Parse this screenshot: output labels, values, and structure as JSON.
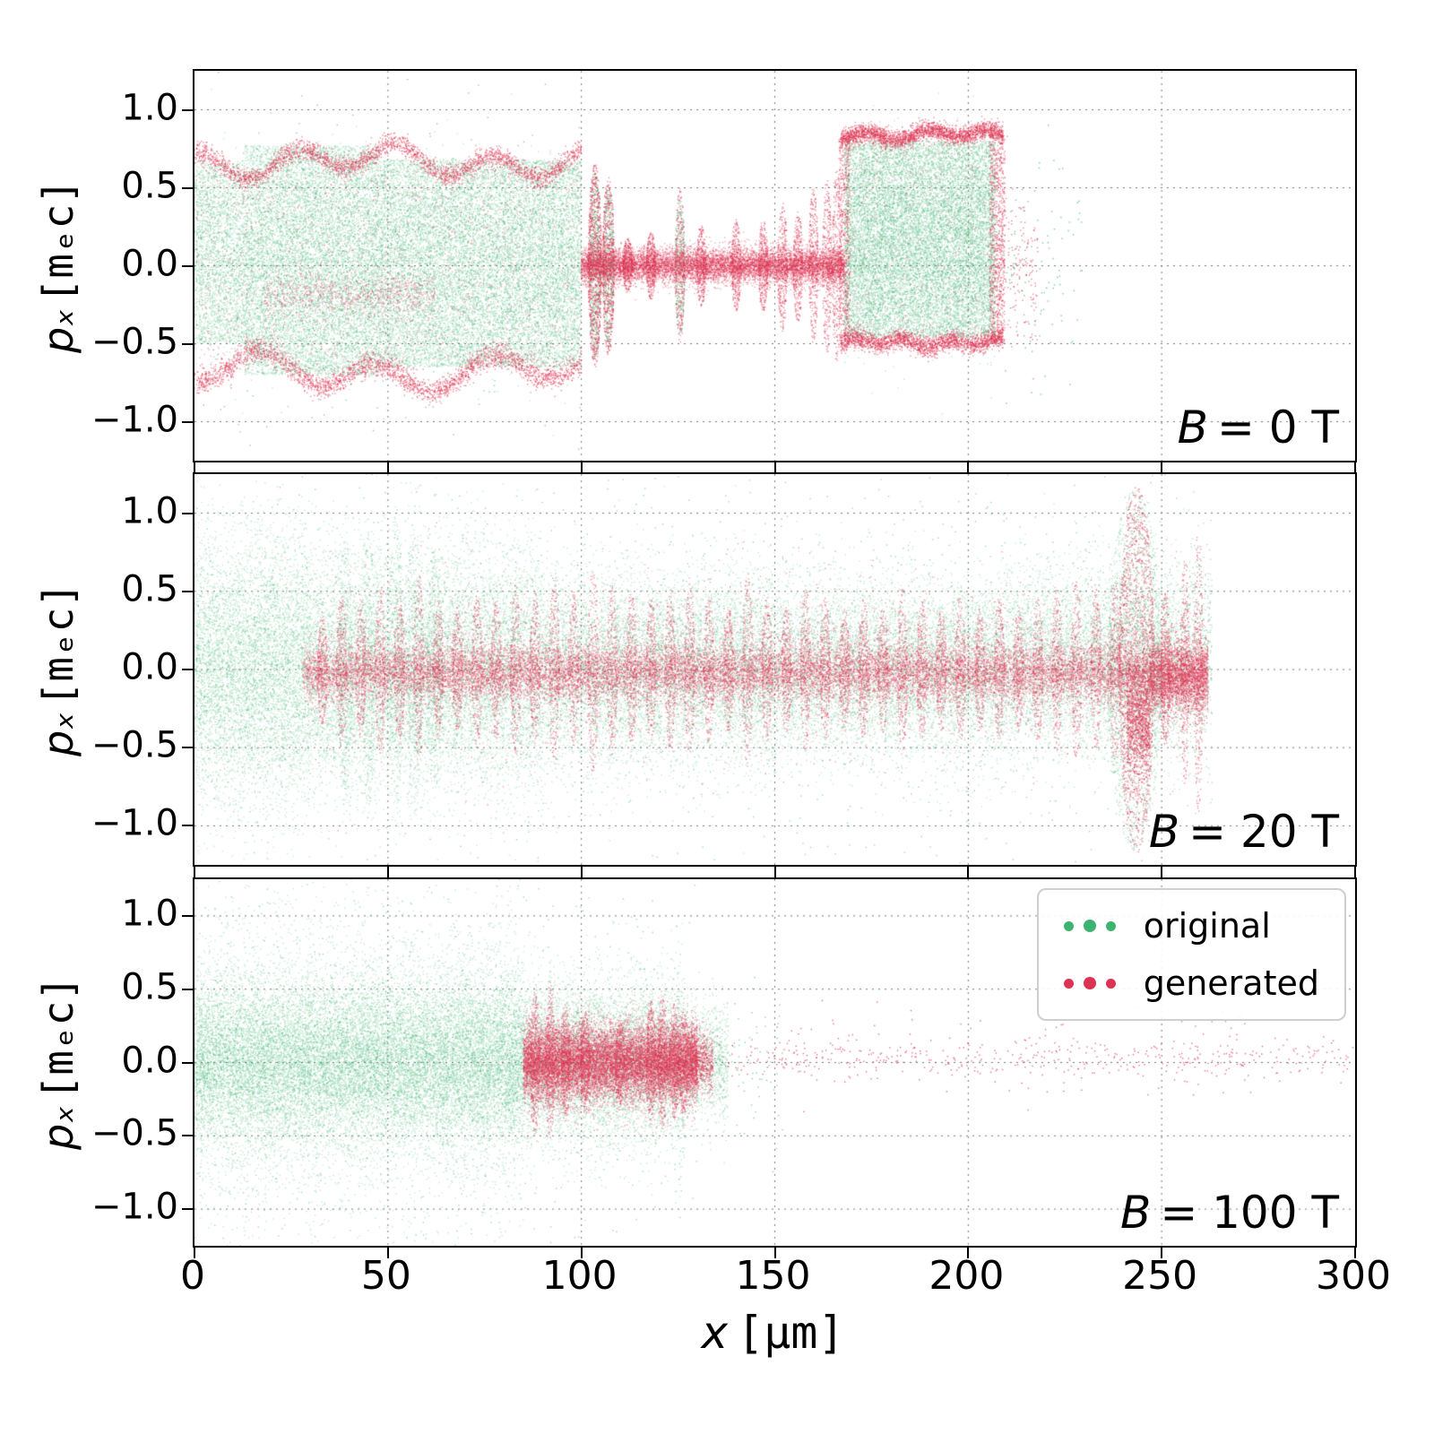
{
  "chart_data": {
    "type": "scatter",
    "title": "",
    "xlabel": {
      "symbol": "x",
      "unit": "[μm]"
    },
    "ylabel": {
      "symbol": "pₓ",
      "unit": "[mₑc]"
    },
    "xlim": [
      0,
      300
    ],
    "ylim": [
      -1.25,
      1.25
    ],
    "xticks": [
      0,
      50,
      100,
      150,
      200,
      250,
      300
    ],
    "xtick_labels": [
      "0",
      "50",
      "100",
      "150",
      "200",
      "250",
      "300"
    ],
    "yticks": [
      -1.0,
      -0.5,
      0.0,
      0.5,
      1.0
    ],
    "ytick_labels": [
      "−1.0",
      "−0.5",
      "0.0",
      "0.5",
      "1.0"
    ],
    "grid": true,
    "colors": {
      "original": "#3cb371",
      "generated": "#dc3352"
    },
    "legend": {
      "position": "upper right of bottom panel",
      "entries": [
        {
          "key": "original",
          "label": "original"
        },
        {
          "key": "generated",
          "label": "generated"
        }
      ]
    },
    "panels": [
      {
        "annotation": {
          "symbol": "B",
          "rest": "= 0 T"
        },
        "clouds": [
          {
            "t": "u",
            "s": "o",
            "x": [
              0,
              13
            ],
            "y": [
              -0.5,
              0.66
            ],
            "n": 2200,
            "a": 0.3
          },
          {
            "t": "u",
            "s": "o",
            "x": [
              13,
              48
            ],
            "y": [
              -0.7,
              0.77
            ],
            "n": 9000,
            "a": 0.3
          },
          {
            "t": "u",
            "s": "o",
            "x": [
              48,
              100
            ],
            "y": [
              -0.65,
              0.68
            ],
            "n": 12000,
            "a": 0.3
          },
          {
            "t": "g",
            "s": "o",
            "x": [
              0,
              100
            ],
            "mu": 0,
            "sg": 0.3,
            "n": 4000,
            "a": 0.3
          },
          {
            "t": "g",
            "s": "o",
            "x": [
              0,
              100
            ],
            "mu": 0,
            "sg": 0.75,
            "n": 300,
            "a": 0.6
          },
          {
            "t": "l",
            "s": "o",
            "cx": 103.5,
            "w": 3,
            "h": 0.6,
            "n": 600,
            "a": 0.45
          },
          {
            "t": "l",
            "s": "o",
            "cx": 107,
            "w": 2.6,
            "h": 0.52,
            "n": 450,
            "a": 0.45
          },
          {
            "t": "l",
            "s": "o",
            "cx": 125.5,
            "w": 2.6,
            "h": 0.45,
            "n": 300,
            "a": 0.45
          },
          {
            "t": "u",
            "s": "o",
            "x": [
              168,
              207
            ],
            "y": [
              -0.46,
              0.8
            ],
            "n": 12000,
            "a": 0.3
          },
          {
            "t": "g",
            "s": "o",
            "x": [
              168,
              207
            ],
            "mu": 0.15,
            "sg": 0.3,
            "n": 3000,
            "a": 0.3
          },
          {
            "t": "g",
            "s": "o",
            "x": [
              205,
              230
            ],
            "mu": 0,
            "sg": 0.3,
            "n": 120,
            "a": 0.7
          },
          {
            "t": "e",
            "s": "g",
            "x": [
              0,
              100
            ],
            "y0": 0.67,
            "amp": 0.08,
            "frq": 0.25,
            "sg": 0.035,
            "side": 1,
            "n": 2600,
            "a": 0.55
          },
          {
            "t": "e",
            "s": "g",
            "x": [
              0,
              100
            ],
            "y0": 0.68,
            "amp": 0.09,
            "frq": 0.21,
            "sg": 0.04,
            "side": -1,
            "n": 2600,
            "a": 0.55
          },
          {
            "t": "u",
            "s": "g",
            "x": [
              0,
              100
            ],
            "y": [
              -0.6,
              0.62
            ],
            "n": 1600,
            "a": 0.35
          },
          {
            "t": "g",
            "s": "g",
            "x": [
              18,
              62
            ],
            "mu": -0.18,
            "sg": 0.07,
            "n": 700,
            "a": 0.4
          },
          {
            "t": "l",
            "s": "g",
            "cx": 103.5,
            "w": 3.4,
            "h": 0.66,
            "n": 900,
            "a": 0.55
          },
          {
            "t": "l",
            "s": "g",
            "cx": 107,
            "w": 3,
            "h": 0.58,
            "n": 650,
            "a": 0.55
          },
          {
            "t": "g",
            "s": "g",
            "x": [
              100,
              168
            ],
            "mu": 0,
            "sg": 0.055,
            "n": 9000,
            "a": 0.4
          },
          {
            "t": "k",
            "s": "g",
            "w": 2.4,
            "n": 320,
            "a": 0.5,
            "pts": [
              [
                112,
                0.18
              ],
              [
                118,
                0.22
              ],
              [
                125.5,
                0.5
              ],
              [
                131,
                0.26
              ],
              [
                140,
                0.3
              ],
              [
                147,
                0.3
              ],
              [
                152,
                0.42
              ],
              [
                156,
                0.36
              ],
              [
                160,
                0.5
              ],
              [
                163.5,
                0.56
              ],
              [
                166,
                0.62
              ]
            ]
          },
          {
            "t": "e",
            "s": "g",
            "x": [
              167,
              209
            ],
            "y0": 0.84,
            "amp": 0.025,
            "frq": 0.4,
            "sg": 0.03,
            "side": 1,
            "n": 2400,
            "a": 0.55
          },
          {
            "t": "e",
            "s": "g",
            "x": [
              167,
              209
            ],
            "y0": 0.49,
            "amp": 0.02,
            "frq": 0.5,
            "sg": 0.03,
            "side": -1,
            "n": 2000,
            "a": 0.55
          },
          {
            "t": "u",
            "s": "g",
            "x": [
              166.5,
              169.5
            ],
            "y": [
              -0.48,
              0.82
            ],
            "n": 600,
            "a": 0.5
          },
          {
            "t": "u",
            "s": "g",
            "x": [
              205.5,
              209.5
            ],
            "y": [
              -0.5,
              0.84
            ],
            "n": 900,
            "a": 0.5
          },
          {
            "t": "u",
            "s": "g",
            "x": [
              168,
              207
            ],
            "y": [
              -0.45,
              0.8
            ],
            "n": 700,
            "a": 0.3
          },
          {
            "t": "g",
            "s": "g",
            "x": [
              209,
              218
            ],
            "mu": 0,
            "sg": 0.25,
            "n": 150,
            "a": 0.6
          }
        ]
      },
      {
        "annotation": {
          "symbol": "B",
          "rest": "= 20 T"
        },
        "clouds": [
          {
            "t": "g",
            "s": "o",
            "x": [
              0,
              30
            ],
            "mu": 0,
            "sg": 0.42,
            "n": 6500,
            "a": 0.28
          },
          {
            "t": "g",
            "s": "o",
            "x": [
              30,
              90
            ],
            "mu": 0,
            "sg": 0.38,
            "n": 10000,
            "a": 0.28
          },
          {
            "t": "g",
            "s": "o",
            "x": [
              90,
              150
            ],
            "mu": 0,
            "sg": 0.3,
            "n": 8500,
            "a": 0.28
          },
          {
            "t": "g",
            "s": "o",
            "x": [
              150,
              210
            ],
            "mu": 0,
            "sg": 0.27,
            "n": 7500,
            "a": 0.28
          },
          {
            "t": "g",
            "s": "o",
            "x": [
              210,
              256
            ],
            "mu": 0.05,
            "sg": 0.28,
            "n": 5500,
            "a": 0.28
          },
          {
            "t": "k",
            "s": "o",
            "w": 3.5,
            "n": 350,
            "a": 0.3,
            "pts": [
              [
                39,
                0.85
              ],
              [
                45,
                0.9
              ],
              [
                52,
                1.0
              ],
              [
                57,
                0.95
              ],
              [
                62,
                0.8
              ]
            ]
          },
          {
            "t": "l",
            "s": "o",
            "cx": 243,
            "w": 14,
            "h": 1.15,
            "n": 1400,
            "a": 0.35
          },
          {
            "t": "g",
            "s": "o",
            "x": [
              256,
              263
            ],
            "mu": 0.1,
            "sg": 0.35,
            "n": 500,
            "a": 0.4
          },
          {
            "t": "g",
            "s": "o",
            "x": [
              0,
              255
            ],
            "mu": 0,
            "sg": 0.75,
            "n": 1500,
            "a": 0.5
          },
          {
            "t": "g",
            "s": "g",
            "x": [
              28,
              262
            ],
            "mu": -0.02,
            "sg": 0.09,
            "n": 16000,
            "a": 0.4
          },
          {
            "t": "k",
            "s": "g",
            "w": 2.6,
            "n": 260,
            "a": 0.45,
            "pts": [
              [
                33,
                0.35
              ],
              [
                38,
                0.5
              ],
              [
                43,
                0.45
              ],
              [
                48,
                0.55
              ],
              [
                53,
                0.5
              ],
              [
                58,
                0.62
              ],
              [
                63,
                0.45
              ],
              [
                68,
                0.4
              ],
              [
                73,
                0.5
              ],
              [
                78,
                0.45
              ],
              [
                83,
                0.55
              ],
              [
                88,
                0.5
              ],
              [
                93,
                0.62
              ],
              [
                98,
                0.5
              ],
              [
                103,
                0.66
              ],
              [
                108,
                0.55
              ],
              [
                113,
                0.5
              ],
              [
                118,
                0.46
              ],
              [
                123,
                0.52
              ],
              [
                128,
                0.56
              ],
              [
                133,
                0.46
              ],
              [
                138,
                0.4
              ],
              [
                143,
                0.62
              ],
              [
                148,
                0.46
              ],
              [
                153,
                0.4
              ],
              [
                158,
                0.52
              ],
              [
                163,
                0.46
              ],
              [
                168,
                0.4
              ],
              [
                173,
                0.46
              ],
              [
                178,
                0.4
              ],
              [
                183,
                0.52
              ],
              [
                188,
                0.46
              ],
              [
                193,
                0.4
              ],
              [
                198,
                0.46
              ],
              [
                203,
                0.4
              ],
              [
                208,
                0.46
              ],
              [
                213,
                0.4
              ],
              [
                218,
                0.46
              ],
              [
                223,
                0.52
              ],
              [
                228,
                0.58
              ],
              [
                233,
                0.52
              ],
              [
                238,
                0.58
              ]
            ]
          },
          {
            "t": "l",
            "s": "g",
            "cx": 243.5,
            "w": 9,
            "h": 1.18,
            "n": 1600,
            "a": 0.5
          },
          {
            "t": "g",
            "s": "g",
            "x": [
              241,
              247
            ],
            "mu": -0.3,
            "sg": 0.18,
            "n": 1200,
            "a": 0.5
          },
          {
            "t": "g",
            "s": "g",
            "x": [
              247,
              262
            ],
            "mu": -0.05,
            "sg": 0.12,
            "n": 2200,
            "a": 0.45
          },
          {
            "t": "k",
            "s": "g",
            "w": 2.2,
            "n": 280,
            "a": 0.5,
            "pts": [
              [
                251,
                0.5
              ],
              [
                256,
                0.75
              ],
              [
                259.5,
                0.92
              ]
            ]
          },
          {
            "t": "g",
            "s": "g",
            "x": [
              30,
              260
            ],
            "mu": 0,
            "sg": 0.32,
            "n": 1500,
            "a": 0.45
          }
        ]
      },
      {
        "annotation": {
          "symbol": "B",
          "rest": "= 100 T"
        },
        "clouds": [
          {
            "t": "g",
            "s": "o",
            "x": [
              0,
              85
            ],
            "mu": 0,
            "sg": 0.27,
            "n": 17000,
            "a": 0.28
          },
          {
            "t": "g",
            "s": "o",
            "x": [
              0,
              85
            ],
            "mu": 0,
            "sg": 0.55,
            "n": 4500,
            "a": 0.3
          },
          {
            "t": "g",
            "s": "o",
            "x": [
              85,
              127
            ],
            "mu": 0,
            "sg": 0.28,
            "n": 7000,
            "a": 0.28
          },
          {
            "t": "g",
            "s": "o",
            "x": [
              127,
              138
            ],
            "mu": 0,
            "sg": 0.2,
            "n": 1000,
            "a": 0.3
          },
          {
            "t": "g",
            "s": "o",
            "x": [
              0,
              130
            ],
            "mu": 0,
            "sg": 0.9,
            "n": 700,
            "a": 0.5
          },
          {
            "t": "g",
            "s": "o",
            "x": [
              138,
              152
            ],
            "mu": 0,
            "sg": 0.25,
            "n": 60,
            "a": 0.6
          },
          {
            "t": "g",
            "s": "g",
            "x": [
              85,
              130
            ],
            "mu": 0,
            "sg": 0.13,
            "n": 14000,
            "a": 0.4
          },
          {
            "t": "k",
            "s": "g",
            "w": 2.4,
            "n": 320,
            "a": 0.45,
            "pts": [
              [
                88,
                0.5
              ],
              [
                92,
                0.55
              ],
              [
                96,
                0.4
              ],
              [
                101,
                0.35
              ],
              [
                110,
                0.3
              ],
              [
                118,
                0.42
              ],
              [
                121,
                0.46
              ],
              [
                124,
                0.4
              ],
              [
                126.5,
                0.36
              ]
            ]
          },
          {
            "t": "g",
            "s": "g",
            "x": [
              128,
              134
            ],
            "mu": 0,
            "sg": 0.1,
            "n": 700,
            "a": 0.45
          },
          {
            "t": "g",
            "s": "g",
            "x": [
              134,
              300
            ],
            "mu": 0.02,
            "sg": 0.06,
            "n": 380,
            "a": 0.7
          },
          {
            "t": "g",
            "s": "g",
            "x": [
              150,
              280
            ],
            "mu": 0.05,
            "sg": 0.15,
            "n": 140,
            "a": 0.7
          }
        ]
      }
    ]
  }
}
